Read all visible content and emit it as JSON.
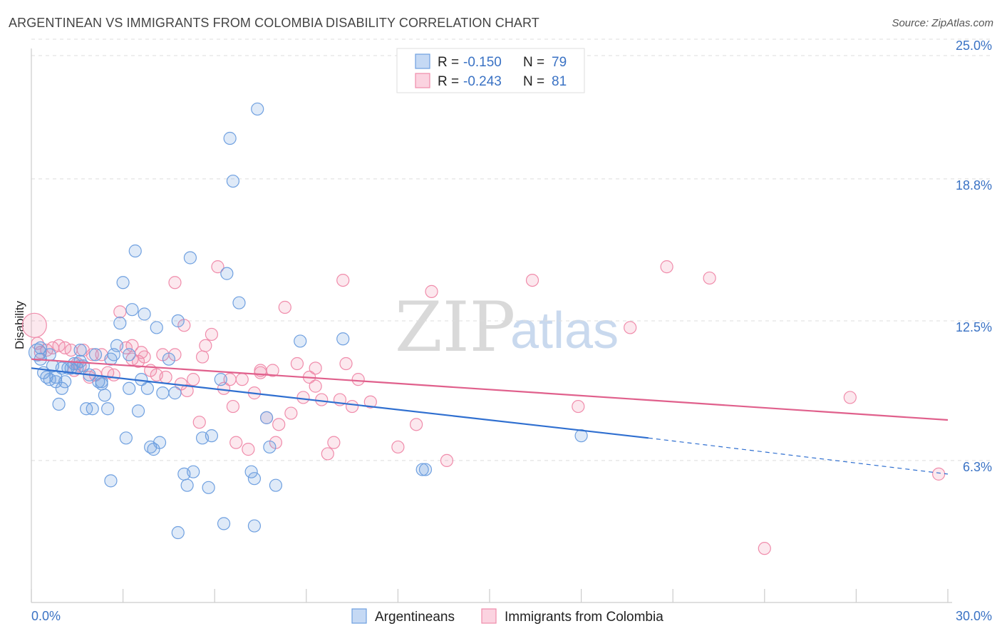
{
  "title": "ARGENTINEAN VS IMMIGRANTS FROM COLOMBIA DISABILITY CORRELATION CHART",
  "source": "Source: ZipAtlas.com",
  "watermark": {
    "zip": "ZIP",
    "atlas": "atlas"
  },
  "legend": {
    "rows": [
      {
        "r_label": "R =",
        "r_value": "-0.150",
        "n_label": "N =",
        "n_value": "79",
        "color": "#6fa0e0"
      },
      {
        "r_label": "R =",
        "r_value": "-0.243",
        "n_label": "N =",
        "n_value": "81",
        "color": "#f08cab"
      }
    ]
  },
  "bottom_legend": [
    {
      "label": "Argentineans",
      "color": "#6fa0e0"
    },
    {
      "label": "Immigrants from Colombia",
      "color": "#f08cab"
    }
  ],
  "chart_data": {
    "type": "scatter",
    "title": "ARGENTINEAN VS IMMIGRANTS FROM COLOMBIA DISABILITY CORRELATION CHART",
    "xlabel": "",
    "ylabel": "Disability",
    "xlim": [
      0,
      30
    ],
    "ylim": [
      0,
      25.6
    ],
    "x_tick_labels": [
      "0.0%",
      "30.0%"
    ],
    "y_ticks": [
      6.3,
      12.5,
      18.8,
      25.0
    ],
    "y_tick_labels": [
      "6.3%",
      "12.5%",
      "18.8%",
      "25.0%"
    ],
    "grid": "horizontal dashed",
    "legend_position": "top-center",
    "series": [
      {
        "name": "Argentineans",
        "color": "#6fa0e0",
        "line_color": "#2f6fd0",
        "trend": {
          "x_start": 0,
          "y_start": 10.4,
          "x_solid_end": 20.2,
          "y_solid_end": 7.3,
          "x_end": 30,
          "y_end": 5.7
        },
        "points": [
          [
            0.2,
            11.1
          ],
          [
            0.3,
            10.8
          ],
          [
            0.4,
            10.2
          ],
          [
            0.5,
            10.0
          ],
          [
            0.6,
            9.9
          ],
          [
            0.7,
            10.5
          ],
          [
            0.8,
            9.8
          ],
          [
            0.9,
            8.8
          ],
          [
            1.0,
            9.5
          ],
          [
            1.1,
            9.8
          ],
          [
            1.3,
            10.4
          ],
          [
            1.4,
            10.6
          ],
          [
            1.5,
            10.4
          ],
          [
            1.6,
            11.2
          ],
          [
            1.7,
            10.5
          ],
          [
            1.8,
            8.6
          ],
          [
            1.9,
            10.1
          ],
          [
            2.0,
            8.6
          ],
          [
            2.1,
            11.0
          ],
          [
            2.2,
            9.8
          ],
          [
            2.3,
            9.7
          ],
          [
            2.4,
            9.2
          ],
          [
            2.5,
            8.6
          ],
          [
            2.6,
            10.8
          ],
          [
            2.7,
            11.0
          ],
          [
            2.8,
            11.4
          ],
          [
            2.9,
            12.4
          ],
          [
            3.0,
            14.2
          ],
          [
            3.1,
            7.3
          ],
          [
            3.2,
            9.5
          ],
          [
            3.3,
            13.0
          ],
          [
            3.4,
            15.6
          ],
          [
            3.5,
            8.5
          ],
          [
            3.6,
            9.9
          ],
          [
            3.7,
            12.8
          ],
          [
            3.8,
            9.5
          ],
          [
            3.9,
            6.9
          ],
          [
            4.0,
            6.8
          ],
          [
            4.1,
            12.2
          ],
          [
            4.2,
            7.1
          ],
          [
            4.3,
            9.3
          ],
          [
            4.5,
            10.8
          ],
          [
            4.7,
            9.3
          ],
          [
            4.8,
            12.5
          ],
          [
            5.0,
            5.7
          ],
          [
            5.1,
            5.2
          ],
          [
            5.2,
            15.3
          ],
          [
            5.3,
            5.8
          ],
          [
            5.6,
            7.3
          ],
          [
            5.8,
            5.1
          ],
          [
            5.9,
            7.4
          ],
          [
            6.2,
            9.9
          ],
          [
            6.4,
            14.6
          ],
          [
            6.5,
            20.6
          ],
          [
            6.6,
            18.7
          ],
          [
            6.8,
            13.3
          ],
          [
            7.2,
            5.8
          ],
          [
            7.3,
            5.5
          ],
          [
            7.4,
            21.9
          ],
          [
            7.7,
            8.2
          ],
          [
            7.8,
            6.9
          ],
          [
            8.0,
            5.2
          ],
          [
            8.8,
            11.6
          ],
          [
            10.2,
            11.7
          ],
          [
            12.8,
            5.9
          ],
          [
            12.9,
            5.9
          ],
          [
            18.0,
            7.4
          ],
          [
            0.6,
            11.0
          ],
          [
            1.2,
            10.4
          ],
          [
            2.6,
            5.4
          ],
          [
            3.2,
            11.0
          ],
          [
            4.8,
            3.1
          ],
          [
            6.3,
            3.5
          ],
          [
            7.3,
            3.4
          ],
          [
            1.0,
            10.4
          ],
          [
            1.6,
            10.7
          ],
          [
            0.3,
            11.3
          ],
          [
            0.8,
            10.0
          ],
          [
            2.3,
            9.8
          ]
        ]
      },
      {
        "name": "Immigrants from Colombia",
        "color": "#f08cab",
        "line_color": "#e0608c",
        "trend": {
          "x_start": 0,
          "y_start": 10.8,
          "x_end": 30,
          "y_end": 8.1
        },
        "points": [
          [
            0.1,
            12.3
          ],
          [
            0.3,
            11.1
          ],
          [
            0.5,
            11.2
          ],
          [
            0.7,
            11.3
          ],
          [
            0.9,
            11.4
          ],
          [
            1.1,
            11.3
          ],
          [
            1.3,
            11.2
          ],
          [
            1.5,
            10.6
          ],
          [
            1.7,
            11.2
          ],
          [
            1.9,
            10.0
          ],
          [
            2.1,
            10.1
          ],
          [
            2.3,
            11.0
          ],
          [
            2.5,
            10.2
          ],
          [
            2.7,
            10.1
          ],
          [
            2.9,
            12.9
          ],
          [
            3.1,
            11.3
          ],
          [
            3.3,
            10.8
          ],
          [
            3.5,
            10.7
          ],
          [
            3.7,
            10.9
          ],
          [
            3.9,
            10.3
          ],
          [
            4.1,
            10.1
          ],
          [
            4.3,
            11.0
          ],
          [
            4.7,
            11.0
          ],
          [
            4.9,
            9.7
          ],
          [
            5.1,
            9.4
          ],
          [
            5.3,
            9.9
          ],
          [
            5.5,
            8.0
          ],
          [
            5.7,
            11.4
          ],
          [
            5.9,
            11.9
          ],
          [
            6.1,
            14.9
          ],
          [
            6.3,
            9.5
          ],
          [
            6.5,
            9.9
          ],
          [
            6.7,
            7.1
          ],
          [
            6.9,
            9.9
          ],
          [
            7.1,
            6.8
          ],
          [
            7.3,
            9.3
          ],
          [
            7.5,
            10.3
          ],
          [
            7.7,
            8.2
          ],
          [
            7.9,
            10.3
          ],
          [
            8.1,
            7.9
          ],
          [
            8.3,
            13.1
          ],
          [
            8.5,
            8.4
          ],
          [
            8.7,
            10.6
          ],
          [
            8.9,
            9.1
          ],
          [
            9.1,
            10.0
          ],
          [
            9.3,
            9.6
          ],
          [
            9.5,
            9.0
          ],
          [
            9.7,
            6.6
          ],
          [
            9.9,
            7.1
          ],
          [
            10.1,
            9.0
          ],
          [
            10.3,
            10.6
          ],
          [
            10.5,
            8.7
          ],
          [
            10.7,
            9.9
          ],
          [
            11.1,
            8.9
          ],
          [
            12.0,
            6.9
          ],
          [
            12.6,
            7.9
          ],
          [
            13.1,
            13.8
          ],
          [
            13.6,
            6.3
          ],
          [
            16.4,
            14.3
          ],
          [
            17.9,
            8.7
          ],
          [
            19.6,
            12.2
          ],
          [
            20.8,
            14.9
          ],
          [
            22.2,
            14.4
          ],
          [
            24.0,
            2.4
          ],
          [
            26.8,
            9.1
          ],
          [
            29.7,
            5.7
          ],
          [
            10.2,
            14.3
          ],
          [
            4.7,
            14.2
          ],
          [
            1.6,
            10.5
          ],
          [
            0.2,
            11.5
          ],
          [
            3.6,
            11.1
          ],
          [
            6.6,
            8.7
          ],
          [
            8.0,
            7.1
          ],
          [
            5.0,
            12.3
          ],
          [
            2.0,
            11.0
          ],
          [
            7.5,
            10.2
          ],
          [
            9.3,
            10.4
          ],
          [
            3.3,
            11.4
          ],
          [
            4.4,
            10.0
          ],
          [
            1.4,
            10.3
          ],
          [
            5.6,
            10.9
          ]
        ]
      }
    ]
  }
}
